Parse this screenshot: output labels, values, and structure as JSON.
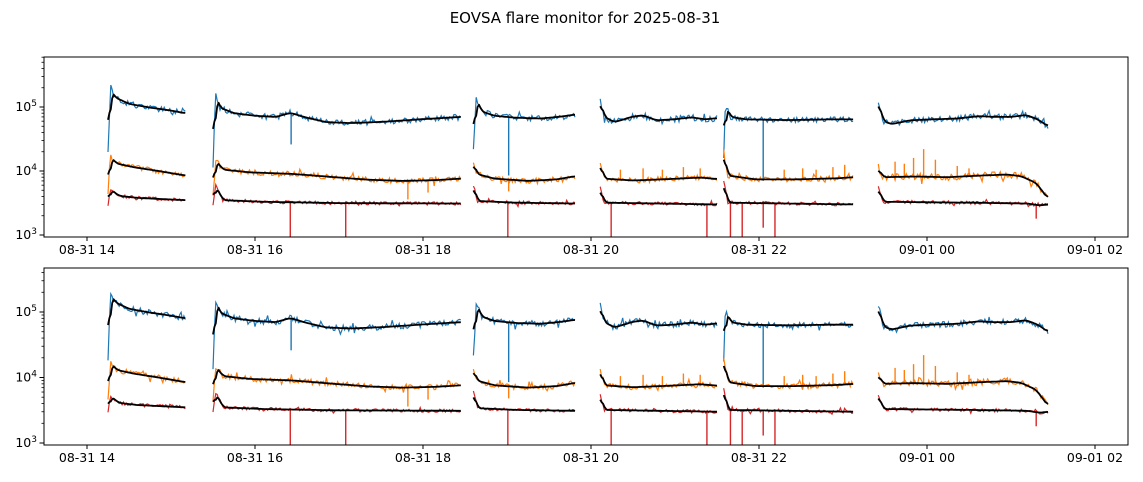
{
  "chart_data": {
    "type": "line",
    "title": "EOVSA flare monitor for 2025-08-31",
    "background": "#ffffff",
    "x_axis": {
      "tick_hours": [
        14,
        16,
        18,
        20,
        22,
        24,
        26
      ],
      "tick_labels": [
        "08-31 14",
        "08-31 16",
        "08-31 18",
        "08-31 20",
        "08-31 22",
        "09-01 00",
        "09-01 02"
      ],
      "xlim_hours": [
        13.49,
        26.39
      ]
    },
    "y_axis": {
      "scale": "log",
      "tick_exponents": [
        3,
        4,
        5
      ],
      "ylim": [
        930,
        600000
      ]
    },
    "legend": "none",
    "grid": false,
    "panels": [
      "top",
      "bottom"
    ],
    "series_meta": [
      {
        "key": "blue",
        "color": "#1f77b4",
        "overlay_color": "#000000"
      },
      {
        "key": "orange",
        "color": "#ff7f0e",
        "overlay_color": "#000000"
      },
      {
        "key": "red",
        "color": "#d62728",
        "overlay_color": "#000000"
      }
    ],
    "segments": [
      {
        "t_range": [
          14.25,
          15.17
        ],
        "blue": {
          "noise": 0.045,
          "anchors": [
            [
              14.25,
              20000
            ],
            [
              14.28,
              185000
            ],
            [
              14.34,
              140000
            ],
            [
              14.5,
              112000
            ],
            [
              14.75,
              98000
            ],
            [
              15.0,
              88000
            ],
            [
              15.17,
              80000
            ]
          ]
        },
        "orange": {
          "noise": 0.04,
          "anchors": [
            [
              14.25,
              4500
            ],
            [
              14.28,
              16500
            ],
            [
              14.36,
              13000
            ],
            [
              14.55,
              11500
            ],
            [
              14.85,
              10000
            ],
            [
              15.17,
              8500
            ]
          ]
        },
        "red": {
          "noise": 0.025,
          "anchors": [
            [
              14.25,
              3000
            ],
            [
              14.28,
              5200
            ],
            [
              14.38,
              4100
            ],
            [
              14.6,
              3800
            ],
            [
              15.17,
              3500
            ]
          ]
        }
      },
      {
        "t_range": [
          15.5,
          18.45
        ],
        "blue": {
          "noise": 0.045,
          "anchors": [
            [
              15.5,
              12000
            ],
            [
              15.53,
              160000
            ],
            [
              15.58,
              98000
            ],
            [
              15.75,
              80000
            ],
            [
              16.0,
              73000
            ],
            [
              16.25,
              70000
            ],
            [
              16.42,
              81000
            ],
            [
              16.6,
              69000
            ],
            [
              16.85,
              58000
            ],
            [
              17.15,
              56000
            ],
            [
              17.55,
              59000
            ],
            [
              17.95,
              64000
            ],
            [
              18.45,
              70000
            ]
          ],
          "down_spikes": [
            [
              16.43,
              26000
            ]
          ]
        },
        "orange": {
          "noise": 0.04,
          "anchors": [
            [
              15.5,
              4000
            ],
            [
              15.53,
              15000
            ],
            [
              15.62,
              10500
            ],
            [
              15.95,
              9500
            ],
            [
              16.45,
              9000
            ],
            [
              16.95,
              8000
            ],
            [
              17.35,
              7300
            ],
            [
              17.75,
              7000
            ],
            [
              18.15,
              7200
            ],
            [
              18.45,
              7600
            ]
          ],
          "down_spikes": [
            [
              17.82,
              3600
            ],
            [
              18.06,
              4600
            ]
          ]
        },
        "red": {
          "noise": 0.025,
          "anchors": [
            [
              15.5,
              3000
            ],
            [
              15.53,
              6000
            ],
            [
              15.62,
              3500
            ],
            [
              16.1,
              3300
            ],
            [
              17.0,
              3150
            ],
            [
              18.45,
              3100
            ]
          ],
          "down_spikes": [
            [
              16.42,
              500
            ],
            [
              17.08,
              500
            ]
          ]
        }
      },
      {
        "t_range": [
          18.6,
          19.81
        ],
        "blue": {
          "noise": 0.045,
          "anchors": [
            [
              18.6,
              20000
            ],
            [
              18.63,
              140000
            ],
            [
              18.7,
              85000
            ],
            [
              18.85,
              73000
            ],
            [
              19.1,
              68000
            ],
            [
              19.4,
              66000
            ],
            [
              19.65,
              71000
            ],
            [
              19.81,
              76000
            ]
          ],
          "down_spikes": [
            [
              19.02,
              8500
            ]
          ]
        },
        "orange": {
          "noise": 0.04,
          "anchors": [
            [
              18.6,
              14000
            ],
            [
              18.64,
              9000
            ],
            [
              18.85,
              7600
            ],
            [
              19.25,
              7000
            ],
            [
              19.6,
              7400
            ],
            [
              19.81,
              8300
            ]
          ],
          "down_spikes": [
            [
              19.02,
              4800
            ]
          ]
        },
        "red": {
          "noise": 0.025,
          "anchors": [
            [
              18.6,
              6000
            ],
            [
              18.65,
              3400
            ],
            [
              19.1,
              3200
            ],
            [
              19.81,
              3100
            ]
          ],
          "down_spikes": [
            [
              19.01,
              500
            ]
          ]
        }
      },
      {
        "t_range": [
          20.11,
          21.5
        ],
        "blue": {
          "noise": 0.05,
          "anchors": [
            [
              20.11,
              125000
            ],
            [
              20.16,
              70000
            ],
            [
              20.28,
              58000
            ],
            [
              20.5,
              71000
            ],
            [
              20.62,
              74000
            ],
            [
              20.78,
              62000
            ],
            [
              20.98,
              64000
            ],
            [
              21.2,
              69000
            ],
            [
              21.36,
              64000
            ],
            [
              21.5,
              67000
            ]
          ]
        },
        "orange": {
          "noise": 0.04,
          "anchors": [
            [
              20.11,
              13500
            ],
            [
              20.16,
              7600
            ],
            [
              20.5,
              7100
            ],
            [
              20.95,
              7500
            ],
            [
              21.3,
              7900
            ],
            [
              21.5,
              7500
            ]
          ],
          "up_spikes": [
            [
              20.35,
              10500
            ],
            [
              20.62,
              11000
            ],
            [
              20.85,
              10500
            ],
            [
              21.1,
              11500
            ],
            [
              21.3,
              11000
            ]
          ]
        },
        "red": {
          "noise": 0.025,
          "anchors": [
            [
              20.11,
              5500
            ],
            [
              20.16,
              3200
            ],
            [
              21.5,
              3000
            ]
          ],
          "down_spikes": [
            [
              20.24,
              500
            ],
            [
              21.38,
              500
            ]
          ]
        }
      },
      {
        "t_range": [
          21.58,
          23.12
        ],
        "blue": {
          "noise": 0.04,
          "anchors": [
            [
              21.58,
              16000
            ],
            [
              21.6,
              115000
            ],
            [
              21.66,
              70000
            ],
            [
              21.85,
              64000
            ],
            [
              22.35,
              62500
            ],
            [
              22.85,
              64000
            ],
            [
              23.12,
              64000
            ]
          ],
          "down_spikes": [
            [
              22.05,
              7000
            ]
          ]
        },
        "orange": {
          "noise": 0.04,
          "anchors": [
            [
              21.58,
              20000
            ],
            [
              21.63,
              8500
            ],
            [
              21.95,
              7400
            ],
            [
              22.45,
              7400
            ],
            [
              22.95,
              7700
            ],
            [
              23.12,
              8000
            ]
          ],
          "up_spikes": [
            [
              22.3,
              10500
            ],
            [
              22.52,
              11000
            ],
            [
              22.68,
              10500
            ],
            [
              22.88,
              11500
            ],
            [
              23.02,
              12500
            ]
          ]
        },
        "red": {
          "noise": 0.025,
          "anchors": [
            [
              21.58,
              7000
            ],
            [
              21.63,
              3200
            ],
            [
              23.12,
              3000
            ]
          ],
          "down_spikes": [
            [
              21.66,
              500
            ],
            [
              21.8,
              500
            ],
            [
              22.05,
              1300
            ],
            [
              22.19,
              500
            ]
          ]
        }
      },
      {
        "t_range": [
          23.42,
          25.44
        ],
        "blue": {
          "noise": 0.045,
          "anchors": [
            [
              23.42,
              125000
            ],
            [
              23.48,
              60000
            ],
            [
              23.58,
              54000
            ],
            [
              23.8,
              62000
            ],
            [
              24.05,
              64000
            ],
            [
              24.35,
              66000
            ],
            [
              24.62,
              72000
            ],
            [
              24.8,
              70000
            ],
            [
              25.0,
              70000
            ],
            [
              25.18,
              75000
            ],
            [
              25.32,
              64000
            ],
            [
              25.44,
              50000
            ]
          ]
        },
        "orange": {
          "noise": 0.05,
          "anchors": [
            [
              23.42,
              11000
            ],
            [
              23.48,
              8000
            ],
            [
              23.85,
              8200
            ],
            [
              24.25,
              8000
            ],
            [
              24.65,
              8500
            ],
            [
              24.95,
              8800
            ],
            [
              25.12,
              8300
            ],
            [
              25.3,
              6500
            ],
            [
              25.44,
              3700
            ]
          ],
          "up_spikes": [
            [
              23.62,
              14000
            ],
            [
              23.73,
              13000
            ],
            [
              23.84,
              16000
            ],
            [
              23.96,
              22000
            ],
            [
              24.1,
              15000
            ],
            [
              24.36,
              12000
            ],
            [
              24.5,
              11000
            ]
          ]
        },
        "red": {
          "noise": 0.025,
          "anchors": [
            [
              23.42,
              5500
            ],
            [
              23.48,
              3300
            ],
            [
              24.5,
              3200
            ],
            [
              25.2,
              3100
            ],
            [
              25.34,
              2900
            ],
            [
              25.44,
              3000
            ]
          ],
          "down_spikes": [
            [
              25.3,
              1800
            ]
          ]
        }
      }
    ]
  }
}
